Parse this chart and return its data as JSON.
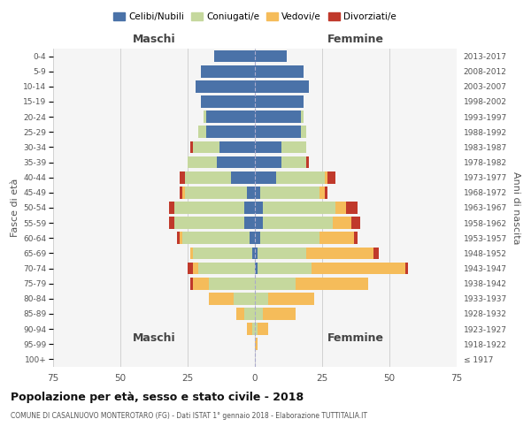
{
  "age_groups": [
    "100+",
    "95-99",
    "90-94",
    "85-89",
    "80-84",
    "75-79",
    "70-74",
    "65-69",
    "60-64",
    "55-59",
    "50-54",
    "45-49",
    "40-44",
    "35-39",
    "30-34",
    "25-29",
    "20-24",
    "15-19",
    "10-14",
    "5-9",
    "0-4"
  ],
  "birth_years": [
    "≤ 1917",
    "1918-1922",
    "1923-1927",
    "1928-1932",
    "1933-1937",
    "1938-1942",
    "1943-1947",
    "1948-1952",
    "1953-1957",
    "1958-1962",
    "1963-1967",
    "1968-1972",
    "1973-1977",
    "1978-1982",
    "1983-1987",
    "1988-1992",
    "1993-1997",
    "1998-2002",
    "2003-2007",
    "2008-2012",
    "2013-2017"
  ],
  "males": {
    "celibi": [
      0,
      0,
      0,
      0,
      0,
      0,
      0,
      1,
      2,
      4,
      4,
      3,
      9,
      14,
      13,
      18,
      18,
      20,
      22,
      20,
      15
    ],
    "coniugati": [
      0,
      0,
      1,
      4,
      8,
      17,
      21,
      22,
      25,
      26,
      26,
      23,
      17,
      11,
      10,
      3,
      1,
      0,
      0,
      0,
      0
    ],
    "vedovi": [
      0,
      0,
      2,
      3,
      9,
      6,
      2,
      1,
      1,
      0,
      0,
      1,
      0,
      0,
      0,
      0,
      0,
      0,
      0,
      0,
      0
    ],
    "divorziati": [
      0,
      0,
      0,
      0,
      0,
      1,
      2,
      0,
      1,
      2,
      2,
      1,
      2,
      0,
      1,
      0,
      0,
      0,
      0,
      0,
      0
    ]
  },
  "females": {
    "nubili": [
      0,
      0,
      0,
      0,
      0,
      0,
      1,
      1,
      2,
      3,
      3,
      2,
      8,
      10,
      10,
      17,
      17,
      18,
      20,
      18,
      12
    ],
    "coniugate": [
      0,
      0,
      1,
      3,
      5,
      15,
      20,
      18,
      22,
      26,
      27,
      22,
      18,
      9,
      9,
      2,
      1,
      0,
      0,
      0,
      0
    ],
    "vedove": [
      0,
      1,
      4,
      12,
      17,
      27,
      35,
      25,
      13,
      7,
      4,
      2,
      1,
      0,
      0,
      0,
      0,
      0,
      0,
      0,
      0
    ],
    "divorziate": [
      0,
      0,
      0,
      0,
      0,
      0,
      1,
      2,
      1,
      3,
      4,
      1,
      3,
      1,
      0,
      0,
      0,
      0,
      0,
      0,
      0
    ]
  },
  "color_celibi": "#4a72a8",
  "color_coniugati": "#c5d89d",
  "color_vedovi": "#f5bc5a",
  "color_divorziati": "#c0392b",
  "title": "Popolazione per età, sesso e stato civile - 2018",
  "subtitle": "COMUNE DI CASALNUOVO MONTEROTARO (FG) - Dati ISTAT 1° gennaio 2018 - Elaborazione TUTTITALIA.IT",
  "xlabel_left": "Maschi",
  "xlabel_right": "Femmine",
  "ylabel_left": "Fasce di età",
  "ylabel_right": "Anni di nascita",
  "xlim": 75,
  "bar_height": 0.8
}
